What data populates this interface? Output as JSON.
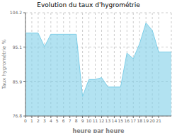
{
  "chart_data": {
    "type": "area",
    "title": "Evolution du taux d'hygrométrie",
    "xlabel": "heure par heure",
    "ylabel": "Taux hygrométrie %",
    "x": [
      0,
      1,
      2,
      3,
      4,
      5,
      6,
      7,
      8,
      9,
      10,
      11,
      12,
      13,
      14,
      15,
      16,
      17,
      18,
      19,
      20,
      21,
      22,
      23
    ],
    "values": [
      98.8,
      98.8,
      98.8,
      95.2,
      98.5,
      98.5,
      98.5,
      98.5,
      98.5,
      82.0,
      86.5,
      86.5,
      87.0,
      84.5,
      84.5,
      84.5,
      93.5,
      92.0,
      96.0,
      101.5,
      99.5,
      93.8,
      93.8,
      93.8
    ],
    "color": "#7ecfe8",
    "xlim": [
      0,
      23
    ],
    "ylim": [
      76.8,
      104.2
    ],
    "xticks": [
      0,
      1,
      2,
      3,
      4,
      5,
      6,
      7,
      8,
      9,
      10,
      11,
      12,
      13,
      14,
      15,
      16,
      17,
      18,
      19,
      20,
      21
    ],
    "yticks": [
      76.8,
      85.9,
      95.1,
      104.2
    ],
    "grid": true
  }
}
